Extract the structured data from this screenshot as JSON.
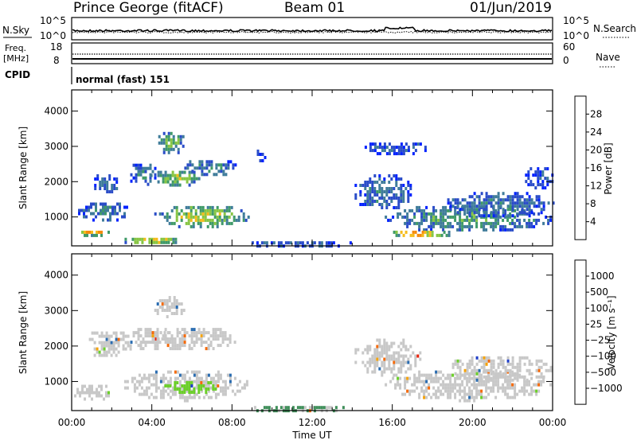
{
  "header": {
    "station": "Prince George (fitACF)",
    "beam": "Beam 01",
    "date": "01/Jun/2019"
  },
  "strip": {
    "nsky_label": "N.Sky",
    "nsearch_label": "N.Search",
    "nsky_ticks": [
      "10^5",
      "10^0"
    ],
    "nsearch_ticks": [
      "10^5",
      "10^0"
    ],
    "freq_label_1": "Freq.",
    "freq_label_2": "[MHz]",
    "freq_ticks": [
      "18",
      "8"
    ],
    "nave_label": "Nave",
    "nave_ticks": [
      "60",
      "0"
    ],
    "cpid_label": "CPID",
    "cpid_value": "normal (fast) 151"
  },
  "chart_data": [
    {
      "type": "heatmap",
      "name": "power-panel",
      "ylabel": "Slant Range [km]",
      "xlabel": "",
      "ylim": [
        180,
        4600
      ],
      "yticks": [
        1000,
        2000,
        3000,
        4000
      ],
      "x_ticks": [
        "00:00",
        "04:00",
        "08:00",
        "12:00",
        "16:00",
        "20:00",
        "00:00"
      ],
      "colorbar": {
        "label": "Power [dB]",
        "ticks": [
          "4",
          "8",
          "12",
          "16",
          "20",
          "24",
          "28"
        ],
        "colors": [
          "#0022ff",
          "#2a4cc8",
          "#3f7c9a",
          "#3f9a68",
          "#87c543",
          "#f5bb1a",
          "#f58a0a",
          "#e8200a"
        ]
      },
      "blobs": [
        {
          "t": [
            0.0,
            2.0
          ],
          "r": [
            500,
            700
          ],
          "value": 24
        },
        {
          "t": [
            0.2,
            3.0
          ],
          "r": [
            900,
            1500
          ],
          "value": 10
        },
        {
          "t": [
            1.0,
            2.4
          ],
          "r": [
            1700,
            2300
          ],
          "value": 9
        },
        {
          "t": [
            2.8,
            4.2
          ],
          "r": [
            1900,
            2600
          ],
          "value": 10
        },
        {
          "t": [
            4.2,
            5.6
          ],
          "r": [
            2800,
            3500
          ],
          "value": 16
        },
        {
          "t": [
            3.8,
            6.4
          ],
          "r": [
            1900,
            2400
          ],
          "value": 18
        },
        {
          "t": [
            5.5,
            8.2
          ],
          "r": [
            2200,
            2700
          ],
          "value": 11
        },
        {
          "t": [
            4.0,
            8.8
          ],
          "r": [
            700,
            1400
          ],
          "value": 19
        },
        {
          "t": [
            2.4,
            5.4
          ],
          "r": [
            250,
            500
          ],
          "value": 22
        },
        {
          "t": [
            8.5,
            14.0
          ],
          "r": [
            180,
            400
          ],
          "value": 8
        },
        {
          "t": [
            9.0,
            9.6
          ],
          "r": [
            2500,
            3000
          ],
          "value": 6
        },
        {
          "t": [
            14.0,
            17.0
          ],
          "r": [
            1200,
            2300
          ],
          "value": 10
        },
        {
          "t": [
            14.5,
            18.0
          ],
          "r": [
            2800,
            3200
          ],
          "value": 7
        },
        {
          "t": [
            15.5,
            24.0
          ],
          "r": [
            600,
            1400
          ],
          "value": 14
        },
        {
          "t": [
            15.8,
            19.0
          ],
          "r": [
            450,
            700
          ],
          "value": 24
        },
        {
          "t": [
            18.5,
            24.0
          ],
          "r": [
            1000,
            1800
          ],
          "value": 10
        },
        {
          "t": [
            22.5,
            24.0
          ],
          "r": [
            1800,
            2500
          ],
          "value": 7
        }
      ]
    },
    {
      "type": "heatmap",
      "name": "velocity-panel",
      "ylabel": "Slant Range [km]",
      "xlabel": "Time UT",
      "ylim": [
        180,
        4600
      ],
      "yticks": [
        1000,
        2000,
        3000,
        4000
      ],
      "x_ticks": [
        "00:00",
        "04:00",
        "08:00",
        "12:00",
        "16:00",
        "20:00",
        "00:00"
      ],
      "colorbar": {
        "label": "Velocity [m s⁻¹]",
        "ticks": [
          "1000",
          "500",
          "100",
          "25",
          "−25",
          "−100",
          "−500",
          "−1000"
        ],
        "colors": [
          "#1f3ec8",
          "#2a6cb0",
          "#3f8f5a",
          "#6ccf2a",
          "#c8c8c8",
          "#f5c82a",
          "#f5a30a",
          "#f56a0a",
          "#e8200a"
        ]
      },
      "blobs": [
        {
          "t": [
            0.0,
            2.0
          ],
          "r": [
            500,
            1000
          ],
          "value": 0
        },
        {
          "t": [
            0.5,
            3.0
          ],
          "r": [
            1700,
            2500
          ],
          "value": 0
        },
        {
          "t": [
            2.8,
            5.0
          ],
          "r": [
            1900,
            2600
          ],
          "value": 0
        },
        {
          "t": [
            4.0,
            5.6
          ],
          "r": [
            2800,
            3500
          ],
          "value": 0
        },
        {
          "t": [
            3.8,
            8.2
          ],
          "r": [
            1900,
            2600
          ],
          "value": 0
        },
        {
          "t": [
            2.5,
            8.8
          ],
          "r": [
            500,
            1400
          ],
          "value": 0
        },
        {
          "t": [
            4.5,
            7.5
          ],
          "r": [
            700,
            1100
          ],
          "value": 150
        },
        {
          "t": [
            14.0,
            17.5
          ],
          "r": [
            1200,
            2300
          ],
          "value": 0
        },
        {
          "t": [
            15.5,
            24.0
          ],
          "r": [
            500,
            1400
          ],
          "value": 0
        },
        {
          "t": [
            18.5,
            24.0
          ],
          "r": [
            1000,
            1800
          ],
          "value": 0
        },
        {
          "t": [
            8.5,
            14.0
          ],
          "r": [
            180,
            400
          ],
          "value": 30
        }
      ]
    }
  ]
}
